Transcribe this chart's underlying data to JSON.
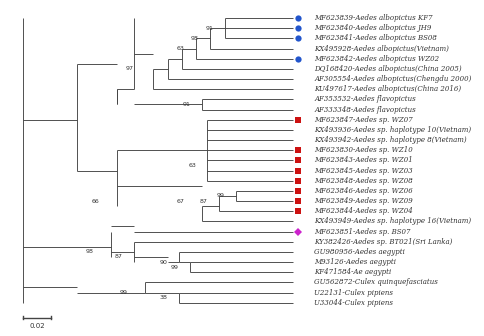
{
  "taxa": [
    {
      "label": "MF623839-Aedes albopictus KF7",
      "row": 0,
      "marker": "circle",
      "marker_color": "#2255cc"
    },
    {
      "label": "MF623840-Aedes albopictus JH9",
      "row": 1,
      "marker": "circle",
      "marker_color": "#2255cc"
    },
    {
      "label": "MF623841-Aedes albopictus BS08",
      "row": 2,
      "marker": "circle",
      "marker_color": "#2255cc"
    },
    {
      "label": "KX495928-Aedes albopictus(Vietnam)",
      "row": 3,
      "marker": null,
      "marker_color": null
    },
    {
      "label": "MF623842-Aedes albopictus WZ02",
      "row": 4,
      "marker": "circle",
      "marker_color": "#2255cc"
    },
    {
      "label": "DQ168420-Aedes albopictus(China 2005)",
      "row": 5,
      "marker": null,
      "marker_color": null
    },
    {
      "label": "AF305554-Aedes albopictus(Chengdu 2000)",
      "row": 6,
      "marker": null,
      "marker_color": null
    },
    {
      "label": "KU497617-Aedes albopictus(China 2016)",
      "row": 7,
      "marker": null,
      "marker_color": null
    },
    {
      "label": "AF353532-Aedes flavopictus",
      "row": 8,
      "marker": null,
      "marker_color": null
    },
    {
      "label": "AF333348-Aedes flavopictus",
      "row": 9,
      "marker": null,
      "marker_color": null
    },
    {
      "label": "MF623847-Aedes sp. WZ07",
      "row": 10,
      "marker": "square",
      "marker_color": "#cc1111"
    },
    {
      "label": "KX493936-Aedes sp. haplotype 10(Vietnam)",
      "row": 11,
      "marker": null,
      "marker_color": null
    },
    {
      "label": "KX493942-Aedes sp. haplotype 8(Vietnam)",
      "row": 12,
      "marker": null,
      "marker_color": null
    },
    {
      "label": "MF623830-Aedes sp. WZ10",
      "row": 13,
      "marker": "square",
      "marker_color": "#cc1111"
    },
    {
      "label": "MF623843-Aedes sp. WZ01",
      "row": 14,
      "marker": "square",
      "marker_color": "#cc1111"
    },
    {
      "label": "MF623845-Aedes sp. WZ03",
      "row": 15,
      "marker": "square",
      "marker_color": "#cc1111"
    },
    {
      "label": "MF623848-Aedes sp. WZ08",
      "row": 16,
      "marker": "square",
      "marker_color": "#cc1111"
    },
    {
      "label": "MF623846-Aedes sp. WZ06",
      "row": 17,
      "marker": "square",
      "marker_color": "#cc1111"
    },
    {
      "label": "MF623849-Aedes sp. WZ09",
      "row": 18,
      "marker": "square",
      "marker_color": "#cc1111"
    },
    {
      "label": "MF623844-Aedes sp. WZ04",
      "row": 19,
      "marker": "square",
      "marker_color": "#cc1111"
    },
    {
      "label": "KX493949-Aedes sp. haplotype 16(Vietnam)",
      "row": 20,
      "marker": null,
      "marker_color": null
    },
    {
      "label": "MF623851-Aedes sp. BS07",
      "row": 21,
      "marker": "diamond",
      "marker_color": "#cc22cc"
    },
    {
      "label": "KY382426-Aedes sp. BT021(Sri Lanka)",
      "row": 22,
      "marker": null,
      "marker_color": null
    },
    {
      "label": "GU980956-Aedes aegypti",
      "row": 23,
      "marker": null,
      "marker_color": null
    },
    {
      "label": "M93126-Aedes aegypti",
      "row": 24,
      "marker": null,
      "marker_color": null
    },
    {
      "label": "KF471584-Ae aegypti",
      "row": 25,
      "marker": null,
      "marker_color": null
    },
    {
      "label": "GU562872-Culex quinquefasciatus",
      "row": 26,
      "marker": null,
      "marker_color": null
    },
    {
      "label": "U22131-Culex pipiens",
      "row": 27,
      "marker": null,
      "marker_color": null
    },
    {
      "label": "U33044-Culex pipiens",
      "row": 28,
      "marker": null,
      "marker_color": null
    }
  ],
  "line_color": "#444444",
  "text_color": "#333333",
  "bg_color": "#ffffff",
  "fontsize": 5.0,
  "bootstrap_fontsize": 4.5,
  "scale_bar_label": "0.02"
}
